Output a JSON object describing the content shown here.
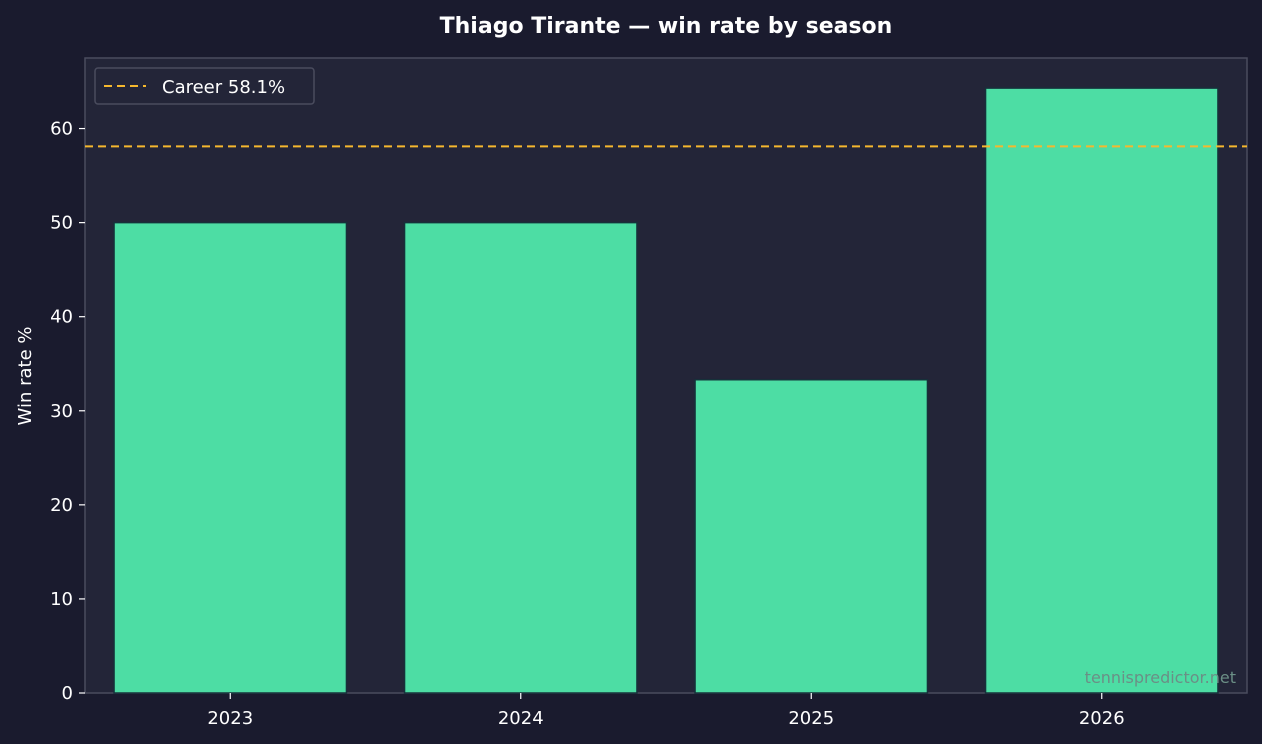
{
  "colors": {
    "page_background": "#1a1b2e",
    "plot_background": "#232538",
    "bar_fill": "#4ddda4",
    "bar_edge": "#16313a",
    "reference_line": "#f5b82e",
    "text": "#ffffff",
    "axis": "#4a4c5e",
    "watermark": "#6b8f86"
  },
  "watermark": "tennispredictor.net",
  "chart_data": {
    "type": "bar",
    "title": "Thiago Tirante — win rate by season",
    "xlabel": "",
    "ylabel": "Win rate %",
    "categories": [
      "2023",
      "2024",
      "2025",
      "2026"
    ],
    "values": [
      50.0,
      50.0,
      33.3,
      64.3
    ],
    "ylim": [
      0,
      67.5
    ],
    "yticks": [
      0,
      10,
      20,
      30,
      40,
      50,
      60
    ],
    "grid": false,
    "reference_line": {
      "value": 58.1,
      "style": "dashed",
      "label": "Career 58.1%"
    },
    "legend": {
      "placement": "top-left",
      "entries": [
        "Career 58.1%"
      ]
    }
  }
}
